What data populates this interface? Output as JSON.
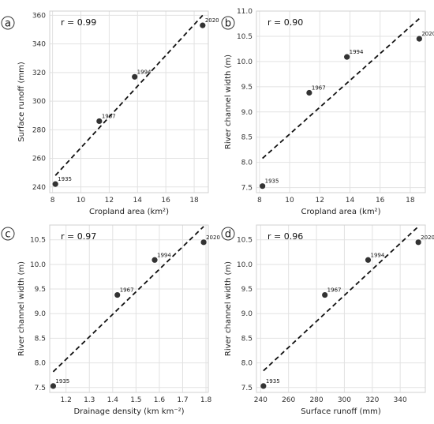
{
  "chart_data": [
    {
      "type": "scatter",
      "panel_label": "a",
      "r_label": "r = 0.99",
      "xlabel": "Cropland area (km²)",
      "ylabel": "Surface runoff (mm)",
      "xlim": [
        7.8,
        19.0
      ],
      "ylim": [
        236,
        363
      ],
      "xticks": [
        8,
        10,
        12,
        14,
        16,
        18
      ],
      "yticks": [
        240,
        260,
        280,
        300,
        320,
        340,
        360
      ],
      "ytick_labels": [
        "240",
        "260",
        "280",
        "300",
        "320",
        "340",
        "360"
      ],
      "points": [
        {
          "label": "1935",
          "x": 8.2,
          "y": 242
        },
        {
          "label": "1967",
          "x": 11.3,
          "y": 286
        },
        {
          "label": "1994",
          "x": 13.8,
          "y": 317
        },
        {
          "label": "2020",
          "x": 18.6,
          "y": 353
        }
      ],
      "fit": [
        [
          8.2,
          248
        ],
        [
          18.6,
          360
        ]
      ]
    },
    {
      "type": "scatter",
      "panel_label": "b",
      "r_label": "r = 0.90",
      "xlabel": "Cropland area (km²)",
      "ylabel": "River channel width (m)",
      "xlim": [
        7.8,
        19.0
      ],
      "ylim": [
        7.4,
        11.0
      ],
      "xticks": [
        8,
        10,
        12,
        14,
        16,
        18
      ],
      "yticks": [
        7.5,
        8.0,
        8.5,
        9.0,
        9.5,
        10.0,
        10.5,
        11.0
      ],
      "ytick_labels": [
        "7.5",
        "8.0",
        "8.5",
        "9.0",
        "9.5",
        "10.0",
        "10.5",
        "11.0"
      ],
      "points": [
        {
          "label": "1935",
          "x": 8.2,
          "y": 7.53
        },
        {
          "label": "1967",
          "x": 11.3,
          "y": 9.38
        },
        {
          "label": "1994",
          "x": 13.8,
          "y": 10.09
        },
        {
          "label": "2020",
          "x": 18.6,
          "y": 10.45
        }
      ],
      "fit": [
        [
          8.2,
          8.08
        ],
        [
          18.6,
          10.85
        ]
      ]
    },
    {
      "type": "scatter",
      "panel_label": "c",
      "r_label": "r = 0.97",
      "xlabel": "Drainage density (km km⁻²)",
      "ylabel": "River channel width (m)",
      "xlim": [
        1.13,
        1.81
      ],
      "ylim": [
        7.4,
        10.8
      ],
      "xticks": [
        1.2,
        1.3,
        1.4,
        1.5,
        1.6,
        1.7,
        1.8
      ],
      "yticks": [
        7.5,
        8.0,
        8.5,
        9.0,
        9.5,
        10.0,
        10.5
      ],
      "ytick_labels": [
        "7.5",
        "8.0",
        "8.5",
        "9.0",
        "9.5",
        "10.0",
        "10.5"
      ],
      "points": [
        {
          "label": "1935",
          "x": 1.145,
          "y": 7.53
        },
        {
          "label": "1967",
          "x": 1.42,
          "y": 9.38
        },
        {
          "label": "1994",
          "x": 1.58,
          "y": 10.09
        },
        {
          "label": "2020",
          "x": 1.79,
          "y": 10.45
        }
      ],
      "fit": [
        [
          1.145,
          7.82
        ],
        [
          1.79,
          10.77
        ]
      ]
    },
    {
      "type": "scatter",
      "panel_label": "d",
      "r_label": "r = 0.96",
      "xlabel": "Surface runoff (mm)",
      "ylabel": "River channel width (m)",
      "xlim": [
        237,
        358
      ],
      "ylim": [
        7.4,
        10.8
      ],
      "xticks": [
        240,
        260,
        280,
        300,
        320,
        340
      ],
      "yticks": [
        7.5,
        8.0,
        8.5,
        9.0,
        9.5,
        10.0,
        10.5
      ],
      "ytick_labels": [
        "7.5",
        "8.0",
        "8.5",
        "9.0",
        "9.5",
        "10.0",
        "10.5"
      ],
      "points": [
        {
          "label": "1935",
          "x": 242,
          "y": 7.53
        },
        {
          "label": "1967",
          "x": 286,
          "y": 9.38
        },
        {
          "label": "1994",
          "x": 317,
          "y": 10.09
        },
        {
          "label": "2020",
          "x": 353,
          "y": 10.45
        }
      ],
      "fit": [
        [
          242,
          7.84
        ],
        [
          353,
          10.77
        ]
      ]
    }
  ],
  "colors": {
    "point": "#333333",
    "fit_line": "#111111",
    "grid": "#e2e2e2",
    "frame": "#d0d0d0"
  }
}
